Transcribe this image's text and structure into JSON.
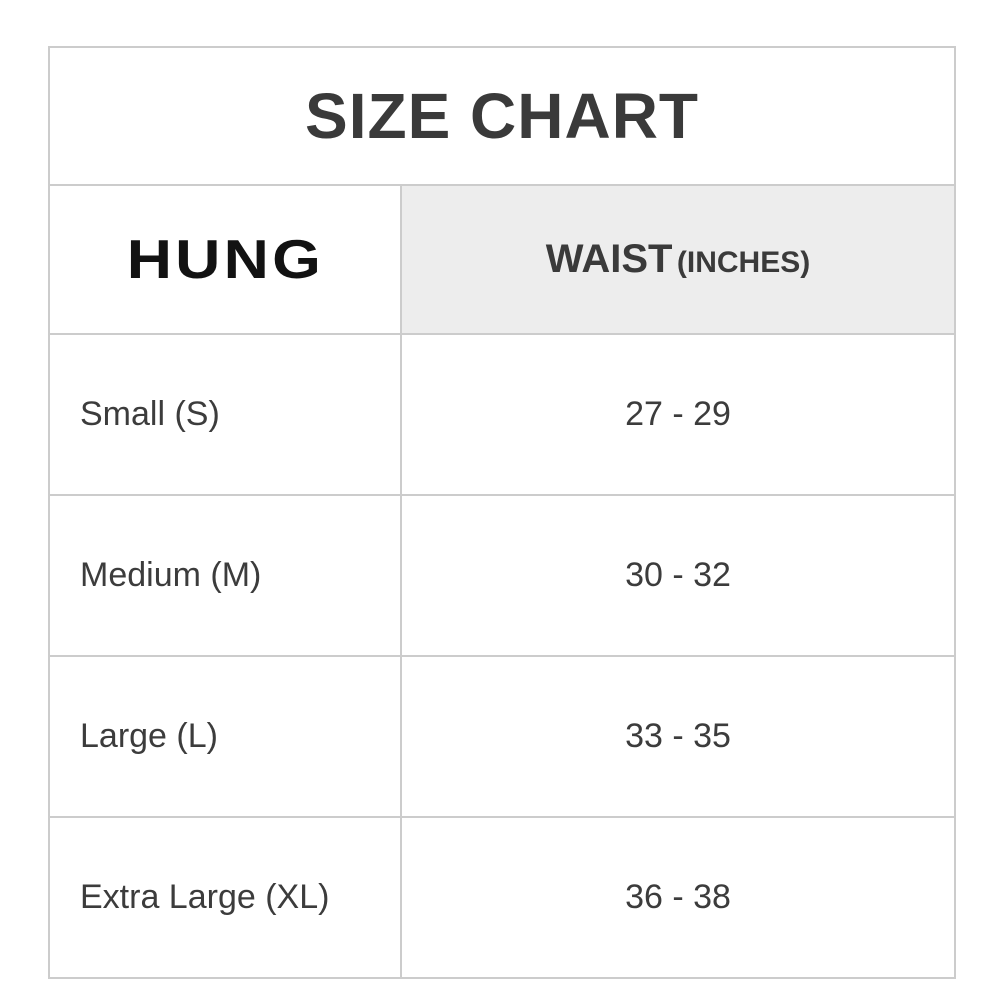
{
  "title": "SIZE CHART",
  "brand": {
    "logo": "HUNG"
  },
  "header": {
    "waist_main": "WAIST",
    "waist_sub": "(INCHES)"
  },
  "rows": [
    {
      "size": "Small (S)",
      "waist": "27 - 29"
    },
    {
      "size": "Medium (M)",
      "waist": "30 - 32"
    },
    {
      "size": "Large (L)",
      "waist": "33 - 35"
    },
    {
      "size": "Extra Large (XL)",
      "waist": "36 - 38"
    }
  ],
  "colors": {
    "border": "#cccccc",
    "header_bg": "#ededed",
    "text": "#3a3a3a",
    "logo": "#121212",
    "background": "#ffffff"
  },
  "chart_data": {
    "type": "table",
    "title": "SIZE CHART",
    "columns": [
      "HUNG",
      "WAIST (INCHES)"
    ],
    "rows": [
      [
        "Small (S)",
        "27 - 29"
      ],
      [
        "Medium (M)",
        "30 - 32"
      ],
      [
        "Large (L)",
        "33 - 35"
      ],
      [
        "Extra Large (XL)",
        "36 - 38"
      ]
    ],
    "notes": "Apparel size chart mapping sizes to waist measurement ranges in inches"
  }
}
